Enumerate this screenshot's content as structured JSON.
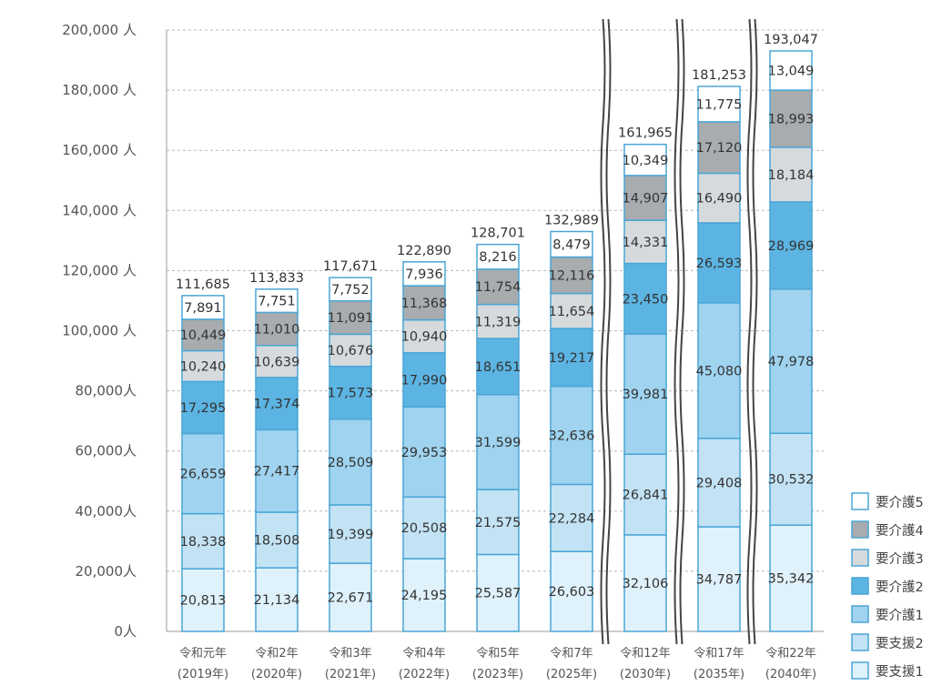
{
  "chart_data": {
    "type": "bar",
    "stacked": true,
    "categories": [
      [
        "令和元年",
        "(2019年)"
      ],
      [
        "令和2年",
        "(2020年)"
      ],
      [
        "令和3年",
        "(2021年)"
      ],
      [
        "令和4年",
        "(2022年)"
      ],
      [
        "令和5年",
        "(2023年)"
      ],
      [
        "令和7年",
        "(2025年)"
      ],
      [
        "令和12年",
        "(2030年)"
      ],
      [
        "令和17年",
        "(2035年)"
      ],
      [
        "令和22年",
        "(2040年)"
      ]
    ],
    "series": [
      {
        "name": "要支援1",
        "color": "#dff1fa",
        "values": [
          20813,
          21134,
          22671,
          24195,
          25587,
          26603,
          32106,
          34787,
          35342
        ]
      },
      {
        "name": "要支援2",
        "color": "#c3e3f4",
        "values": [
          18338,
          18508,
          19399,
          20508,
          21575,
          22284,
          26841,
          29408,
          30532
        ]
      },
      {
        "name": "要介護1",
        "color": "#9fd3ef",
        "values": [
          26659,
          27417,
          28509,
          29953,
          31599,
          32636,
          39981,
          45080,
          47978
        ]
      },
      {
        "name": "要介護2",
        "color": "#5cb4e2",
        "values": [
          17295,
          17374,
          17573,
          17990,
          18651,
          19217,
          23450,
          26593,
          28969
        ]
      },
      {
        "name": "要介護3",
        "color": "#d6dadc",
        "values": [
          10240,
          10639,
          10676,
          10940,
          11319,
          11654,
          14331,
          16490,
          18184
        ]
      },
      {
        "name": "要介護4",
        "color": "#a8acae",
        "values": [
          10449,
          11010,
          11091,
          11368,
          11754,
          12116,
          14907,
          17120,
          18993
        ]
      },
      {
        "name": "要介護5",
        "color": "#ffffff",
        "values": [
          7891,
          7751,
          7752,
          7936,
          8216,
          8479,
          10349,
          11775,
          13049
        ]
      }
    ],
    "totals": [
      111685,
      113833,
      117671,
      122890,
      128701,
      132989,
      161965,
      181253,
      193047
    ],
    "legend_order": [
      "要介護5",
      "要介護4",
      "要介護3",
      "要介護2",
      "要介護1",
      "要支援2",
      "要支援1"
    ],
    "ylim": [
      0,
      200000
    ],
    "yticks": [
      0,
      20000,
      40000,
      60000,
      80000,
      100000,
      120000,
      140000,
      160000,
      180000,
      200000
    ],
    "ytick_labels": [
      "0人",
      "20,000人",
      "40,000人",
      "60,000人",
      "80,000人",
      "100,000 人",
      "120,000 人",
      "140,000 人",
      "160,000 人",
      "180,000 人",
      "200,000 人"
    ],
    "grid": true,
    "axis_breaks_after": [
      5,
      6,
      7
    ],
    "legend_position": "bottom-right",
    "border_color": "#4aa6d6"
  }
}
